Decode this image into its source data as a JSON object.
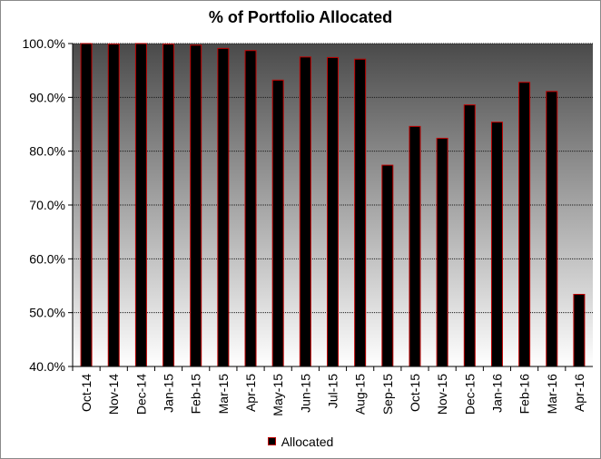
{
  "chart_data": {
    "type": "bar",
    "title": "% of Portfolio Allocated",
    "xlabel": "",
    "ylabel": "",
    "categories": [
      "Oct-14",
      "Nov-14",
      "Dec-14",
      "Jan-15",
      "Feb-15",
      "Mar-15",
      "Apr-15",
      "May-15",
      "Jun-15",
      "Jul-15",
      "Aug-15",
      "Sep-15",
      "Oct-15",
      "Nov-15",
      "Dec-15",
      "Jan-16",
      "Feb-16",
      "Mar-16",
      "Apr-16"
    ],
    "series": [
      {
        "name": "Allocated",
        "values": [
          100.0,
          99.9,
          100.0,
          99.9,
          99.7,
          99.1,
          98.7,
          93.2,
          97.5,
          97.4,
          97.1,
          77.4,
          84.6,
          82.4,
          88.6,
          85.4,
          92.8,
          91.1,
          53.4
        ]
      }
    ],
    "ylim": [
      40,
      100
    ],
    "yticks": [
      40,
      50,
      60,
      70,
      80,
      90,
      100
    ],
    "ytick_labels": [
      "40.0%",
      "50.0%",
      "60.0%",
      "70.0%",
      "80.0%",
      "90.0%",
      "100.0%"
    ],
    "grid": true,
    "legend_position": "bottom",
    "colors": {
      "bar_fill": "#000000",
      "bar_edge": "#c00000",
      "plot_bg_top": "#4a4a4a",
      "plot_bg_bottom": "#ffffff",
      "grid": "#1a1a1a"
    }
  }
}
